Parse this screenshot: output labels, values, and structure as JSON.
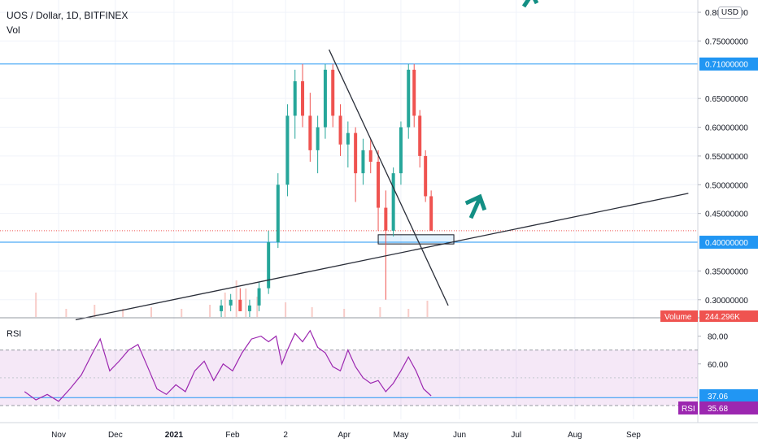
{
  "header": {
    "symbol": "UOS / Dollar, 1D, BITFINEX",
    "vol_label": "Vol",
    "currency": "USD"
  },
  "chart_data": [
    {
      "type": "candlestick",
      "title": "UOS / Dollar, 1D, BITFINEX",
      "x_ticks": [
        "Nov",
        "Dec",
        "2021",
        "Feb",
        "2",
        "Apr",
        "May",
        "Jun",
        "Jul",
        "Aug",
        "Sep"
      ],
      "y_ticks": [
        "0.80000000",
        "0.75000000",
        "0.65000000",
        "0.60000000",
        "0.55000000",
        "0.50000000",
        "0.45000000",
        "0.35000000",
        "0.30000000"
      ],
      "ylim": [
        0.27,
        0.81
      ],
      "price_labels": [
        {
          "text": "0.71000000",
          "value": 0.71
        },
        {
          "text": "0.40000000",
          "value": 0.4
        }
      ],
      "volume_badge": {
        "label": "Volume",
        "value": "244.296K"
      },
      "horizontal_levels": [
        0.71,
        0.4
      ],
      "last_price_line": 0.42,
      "trendlines": [
        {
          "from": [
            "2020-11-10",
            0.265
          ],
          "to": [
            "2021-09-30",
            0.485
          ]
        },
        {
          "from": [
            "2021-03-24",
            0.735
          ],
          "to": [
            "2021-05-26",
            0.29
          ]
        }
      ],
      "support_box": {
        "x": [
          "2021-04-19",
          "2021-05-29"
        ],
        "y": [
          0.397,
          0.413
        ]
      },
      "annotation_arrows": [
        "teal-arrow-up-right",
        "teal-arrow-top"
      ],
      "candles": [
        {
          "date": "2021-01-26",
          "open": 0.28,
          "high": 0.3,
          "low": 0.27,
          "close": 0.29
        },
        {
          "date": "2021-01-31",
          "open": 0.29,
          "high": 0.31,
          "low": 0.28,
          "close": 0.3
        },
        {
          "date": "2021-02-05",
          "open": 0.3,
          "high": 0.32,
          "low": 0.28,
          "close": 0.28
        },
        {
          "date": "2021-02-10",
          "open": 0.28,
          "high": 0.3,
          "low": 0.27,
          "close": 0.29
        },
        {
          "date": "2021-02-15",
          "open": 0.29,
          "high": 0.33,
          "low": 0.28,
          "close": 0.32
        },
        {
          "date": "2021-02-20",
          "open": 0.32,
          "high": 0.42,
          "low": 0.31,
          "close": 0.4
        },
        {
          "date": "2021-02-25",
          "open": 0.4,
          "high": 0.52,
          "low": 0.39,
          "close": 0.5
        },
        {
          "date": "2021-03-02",
          "open": 0.5,
          "high": 0.64,
          "low": 0.48,
          "close": 0.62
        },
        {
          "date": "2021-03-06",
          "open": 0.62,
          "high": 0.7,
          "low": 0.58,
          "close": 0.68
        },
        {
          "date": "2021-03-10",
          "open": 0.68,
          "high": 0.71,
          "low": 0.6,
          "close": 0.62
        },
        {
          "date": "2021-03-14",
          "open": 0.62,
          "high": 0.66,
          "low": 0.54,
          "close": 0.56
        },
        {
          "date": "2021-03-18",
          "open": 0.56,
          "high": 0.62,
          "low": 0.52,
          "close": 0.6
        },
        {
          "date": "2021-03-22",
          "open": 0.6,
          "high": 0.71,
          "low": 0.58,
          "close": 0.7
        },
        {
          "date": "2021-03-26",
          "open": 0.7,
          "high": 0.71,
          "low": 0.6,
          "close": 0.62
        },
        {
          "date": "2021-03-30",
          "open": 0.62,
          "high": 0.64,
          "low": 0.55,
          "close": 0.57
        },
        {
          "date": "2021-04-03",
          "open": 0.57,
          "high": 0.61,
          "low": 0.53,
          "close": 0.59
        },
        {
          "date": "2021-04-07",
          "open": 0.59,
          "high": 0.6,
          "low": 0.47,
          "close": 0.52
        },
        {
          "date": "2021-04-11",
          "open": 0.52,
          "high": 0.58,
          "low": 0.5,
          "close": 0.56
        },
        {
          "date": "2021-04-15",
          "open": 0.56,
          "high": 0.58,
          "low": 0.52,
          "close": 0.54
        },
        {
          "date": "2021-04-19",
          "open": 0.54,
          "high": 0.56,
          "low": 0.42,
          "close": 0.46
        },
        {
          "date": "2021-04-23",
          "open": 0.46,
          "high": 0.49,
          "low": 0.3,
          "close": 0.42
        },
        {
          "date": "2021-04-27",
          "open": 0.42,
          "high": 0.53,
          "low": 0.41,
          "close": 0.52
        },
        {
          "date": "2021-05-01",
          "open": 0.52,
          "high": 0.61,
          "low": 0.5,
          "close": 0.6
        },
        {
          "date": "2021-05-05",
          "open": 0.6,
          "high": 0.71,
          "low": 0.58,
          "close": 0.7
        },
        {
          "date": "2021-05-08",
          "open": 0.7,
          "high": 0.71,
          "low": 0.6,
          "close": 0.62
        },
        {
          "date": "2021-05-11",
          "open": 0.62,
          "high": 0.63,
          "low": 0.53,
          "close": 0.55
        },
        {
          "date": "2021-05-14",
          "open": 0.55,
          "high": 0.56,
          "low": 0.47,
          "close": 0.48
        },
        {
          "date": "2021-05-17",
          "open": 0.48,
          "high": 0.49,
          "low": 0.42,
          "close": 0.42
        }
      ],
      "volume": [
        {
          "date": "2020-10-20",
          "value": 0.3
        },
        {
          "date": "2020-11-05",
          "value": 0.1
        },
        {
          "date": "2020-11-20",
          "value": 0.15
        },
        {
          "date": "2020-12-05",
          "value": 0.1
        },
        {
          "date": "2020-12-20",
          "value": 0.12
        },
        {
          "date": "2021-01-05",
          "value": 0.1
        },
        {
          "date": "2021-01-20",
          "value": 0.15
        },
        {
          "date": "2021-01-28",
          "value": 0.3
        },
        {
          "date": "2021-02-03",
          "value": 0.45
        },
        {
          "date": "2021-02-08",
          "value": 0.35
        },
        {
          "date": "2021-02-14",
          "value": 0.25
        },
        {
          "date": "2021-03-01",
          "value": 0.18
        },
        {
          "date": "2021-03-15",
          "value": 0.12
        },
        {
          "date": "2021-04-01",
          "value": 0.1
        },
        {
          "date": "2021-04-20",
          "value": 0.12
        },
        {
          "date": "2021-05-05",
          "value": 0.1
        },
        {
          "date": "2021-05-15",
          "value": 0.2
        }
      ]
    },
    {
      "type": "line",
      "title": "RSI",
      "y_ticks": [
        "80.00",
        "60.00"
      ],
      "ylim": [
        20,
        88
      ],
      "bands": [
        30,
        70
      ],
      "current_label": {
        "text": "37.06",
        "value": 37.06
      },
      "rsi_badge": {
        "label": "RSI",
        "value": "35.68"
      },
      "series": [
        {
          "values": [
            [
              "2020-10-14",
              40
            ],
            [
              "2020-10-20",
              34
            ],
            [
              "2020-10-26",
              38
            ],
            [
              "2020-11-01",
              33
            ],
            [
              "2020-11-07",
              42
            ],
            [
              "2020-11-13",
              52
            ],
            [
              "2020-11-19",
              68
            ],
            [
              "2020-11-23",
              78
            ],
            [
              "2020-11-28",
              55
            ],
            [
              "2020-12-03",
              62
            ],
            [
              "2020-12-08",
              70
            ],
            [
              "2020-12-13",
              74
            ],
            [
              "2020-12-18",
              58
            ],
            [
              "2020-12-23",
              42
            ],
            [
              "2020-12-28",
              38
            ],
            [
              "2021-01-02",
              45
            ],
            [
              "2021-01-07",
              40
            ],
            [
              "2021-01-12",
              55
            ],
            [
              "2021-01-17",
              62
            ],
            [
              "2021-01-22",
              48
            ],
            [
              "2021-01-27",
              60
            ],
            [
              "2021-02-01",
              55
            ],
            [
              "2021-02-06",
              68
            ],
            [
              "2021-02-11",
              78
            ],
            [
              "2021-02-16",
              80
            ],
            [
              "2021-02-20",
              76
            ],
            [
              "2021-02-24",
              80
            ],
            [
              "2021-02-27",
              60
            ],
            [
              "2021-03-02",
              70
            ],
            [
              "2021-03-06",
              82
            ],
            [
              "2021-03-10",
              76
            ],
            [
              "2021-03-14",
              84
            ],
            [
              "2021-03-18",
              72
            ],
            [
              "2021-03-22",
              68
            ],
            [
              "2021-03-26",
              58
            ],
            [
              "2021-03-30",
              55
            ],
            [
              "2021-04-03",
              70
            ],
            [
              "2021-04-07",
              58
            ],
            [
              "2021-04-11",
              50
            ],
            [
              "2021-04-15",
              46
            ],
            [
              "2021-04-19",
              48
            ],
            [
              "2021-04-23",
              40
            ],
            [
              "2021-04-27",
              46
            ],
            [
              "2021-05-01",
              55
            ],
            [
              "2021-05-05",
              65
            ],
            [
              "2021-05-09",
              55
            ],
            [
              "2021-05-13",
              42
            ],
            [
              "2021-05-17",
              37
            ]
          ]
        }
      ]
    }
  ]
}
